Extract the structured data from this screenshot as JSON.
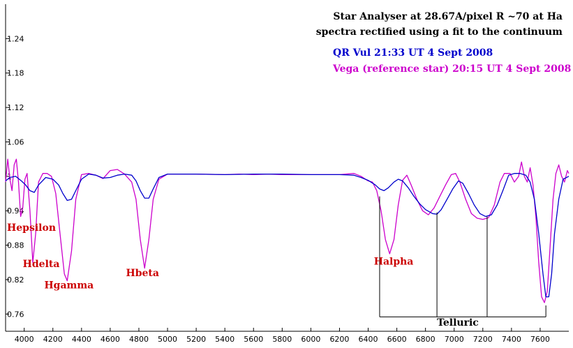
{
  "chart_data": {
    "type": "line",
    "title_lines": [
      "Star Analyser at 28.67A/pixel  R ~70 at Ha",
      "spectra rectified using a fit to the continuum"
    ],
    "xlabel": "",
    "ylabel": "",
    "xlim": [
      3870,
      7800
    ],
    "ylim": [
      0.73,
      1.3
    ],
    "x_ticks": [
      4000,
      4200,
      4400,
      4600,
      4800,
      5000,
      5200,
      5400,
      5600,
      5800,
      6000,
      6200,
      6400,
      6600,
      6800,
      7000,
      7200,
      7400,
      7600
    ],
    "y_ticks": [
      0.76,
      0.82,
      0.88,
      0.94,
      1.0,
      1.06,
      1.12,
      1.18,
      1.24
    ],
    "y_tick_labels": [
      "0.76",
      "0.82",
      "0.88",
      "0.94",
      "1",
      "1.06",
      "1.12",
      "1.18",
      "1.24"
    ],
    "grid": false,
    "legend_position": "top-right",
    "series": [
      {
        "name": "QR Vul  21:33 UT 4 Sept 2008",
        "color": "#0000cc",
        "points": [
          [
            3870,
            0.992
          ],
          [
            3900,
            0.998
          ],
          [
            3940,
            1.0
          ],
          [
            3980,
            0.992
          ],
          [
            4010,
            0.985
          ],
          [
            4040,
            0.975
          ],
          [
            4070,
            0.972
          ],
          [
            4100,
            0.985
          ],
          [
            4150,
            0.998
          ],
          [
            4200,
            0.995
          ],
          [
            4240,
            0.985
          ],
          [
            4270,
            0.97
          ],
          [
            4300,
            0.958
          ],
          [
            4330,
            0.96
          ],
          [
            4360,
            0.975
          ],
          [
            4400,
            0.995
          ],
          [
            4450,
            1.004
          ],
          [
            4500,
            1.002
          ],
          [
            4550,
            0.997
          ],
          [
            4600,
            0.998
          ],
          [
            4650,
            1.002
          ],
          [
            4700,
            1.004
          ],
          [
            4750,
            1.002
          ],
          [
            4780,
            0.992
          ],
          [
            4810,
            0.975
          ],
          [
            4840,
            0.962
          ],
          [
            4870,
            0.962
          ],
          [
            4900,
            0.978
          ],
          [
            4940,
            0.998
          ],
          [
            5000,
            1.004
          ],
          [
            5200,
            1.004
          ],
          [
            5400,
            1.003
          ],
          [
            5600,
            1.004
          ],
          [
            5800,
            1.004
          ],
          [
            6000,
            1.003
          ],
          [
            6200,
            1.003
          ],
          [
            6300,
            1.002
          ],
          [
            6350,
            0.998
          ],
          [
            6400,
            0.993
          ],
          [
            6450,
            0.985
          ],
          [
            6480,
            0.978
          ],
          [
            6510,
            0.975
          ],
          [
            6540,
            0.98
          ],
          [
            6580,
            0.99
          ],
          [
            6610,
            0.995
          ],
          [
            6640,
            0.992
          ],
          [
            6680,
            0.98
          ],
          [
            6720,
            0.965
          ],
          [
            6760,
            0.952
          ],
          [
            6800,
            0.942
          ],
          [
            6850,
            0.935
          ],
          [
            6880,
            0.934
          ],
          [
            6910,
            0.942
          ],
          [
            6950,
            0.96
          ],
          [
            6990,
            0.978
          ],
          [
            7030,
            0.992
          ],
          [
            7060,
            0.988
          ],
          [
            7100,
            0.97
          ],
          [
            7140,
            0.95
          ],
          [
            7180,
            0.935
          ],
          [
            7220,
            0.93
          ],
          [
            7260,
            0.933
          ],
          [
            7300,
            0.95
          ],
          [
            7340,
            0.975
          ],
          [
            7380,
            1.002
          ],
          [
            7420,
            1.005
          ],
          [
            7460,
            1.005
          ],
          [
            7500,
            1.002
          ],
          [
            7530,
            0.99
          ],
          [
            7560,
            0.96
          ],
          [
            7590,
            0.9
          ],
          [
            7620,
            0.83
          ],
          [
            7640,
            0.79
          ],
          [
            7660,
            0.79
          ],
          [
            7680,
            0.83
          ],
          [
            7700,
            0.9
          ],
          [
            7730,
            0.96
          ],
          [
            7760,
            0.995
          ],
          [
            7800,
            1.0
          ]
        ]
      },
      {
        "name": "Vega (reference star)   20:15 UT 4 Sept 2008",
        "color": "#cc00cc",
        "points": [
          [
            3870,
            0.99
          ],
          [
            3885,
            1.03
          ],
          [
            3900,
            0.995
          ],
          [
            3915,
            0.975
          ],
          [
            3930,
            1.02
          ],
          [
            3945,
            1.03
          ],
          [
            3960,
            0.99
          ],
          [
            3975,
            0.93
          ],
          [
            3990,
            0.945
          ],
          [
            4005,
            0.995
          ],
          [
            4020,
            1.005
          ],
          [
            4040,
            0.94
          ],
          [
            4060,
            0.85
          ],
          [
            4080,
            0.9
          ],
          [
            4100,
            0.99
          ],
          [
            4130,
            1.005
          ],
          [
            4160,
            1.005
          ],
          [
            4190,
            1.0
          ],
          [
            4220,
            0.97
          ],
          [
            4250,
            0.9
          ],
          [
            4280,
            0.83
          ],
          [
            4300,
            0.818
          ],
          [
            4330,
            0.87
          ],
          [
            4360,
            0.96
          ],
          [
            4400,
            1.003
          ],
          [
            4450,
            1.005
          ],
          [
            4500,
            1.002
          ],
          [
            4550,
            0.996
          ],
          [
            4600,
            1.01
          ],
          [
            4650,
            1.012
          ],
          [
            4700,
            1.004
          ],
          [
            4750,
            0.99
          ],
          [
            4780,
            0.96
          ],
          [
            4810,
            0.89
          ],
          [
            4840,
            0.84
          ],
          [
            4870,
            0.89
          ],
          [
            4900,
            0.96
          ],
          [
            4940,
            0.995
          ],
          [
            5000,
            1.004
          ],
          [
            5200,
            1.004
          ],
          [
            5400,
            1.003
          ],
          [
            5500,
            1.004
          ],
          [
            5600,
            1.003
          ],
          [
            5700,
            1.004
          ],
          [
            5800,
            1.003
          ],
          [
            6000,
            1.003
          ],
          [
            6200,
            1.003
          ],
          [
            6300,
            1.005
          ],
          [
            6350,
            1.0
          ],
          [
            6400,
            0.992
          ],
          [
            6430,
            0.99
          ],
          [
            6460,
            0.975
          ],
          [
            6490,
            0.94
          ],
          [
            6520,
            0.89
          ],
          [
            6550,
            0.865
          ],
          [
            6580,
            0.89
          ],
          [
            6610,
            0.95
          ],
          [
            6640,
            0.993
          ],
          [
            6670,
            1.002
          ],
          [
            6700,
            0.985
          ],
          [
            6740,
            0.96
          ],
          [
            6780,
            0.94
          ],
          [
            6820,
            0.933
          ],
          [
            6860,
            0.945
          ],
          [
            6900,
            0.965
          ],
          [
            6940,
            0.985
          ],
          [
            6980,
            1.003
          ],
          [
            7010,
            1.005
          ],
          [
            7040,
            0.99
          ],
          [
            7080,
            0.96
          ],
          [
            7120,
            0.935
          ],
          [
            7160,
            0.927
          ],
          [
            7200,
            0.925
          ],
          [
            7240,
            0.928
          ],
          [
            7280,
            0.95
          ],
          [
            7320,
            0.99
          ],
          [
            7350,
            1.005
          ],
          [
            7390,
            1.005
          ],
          [
            7420,
            0.99
          ],
          [
            7450,
            1.0
          ],
          [
            7470,
            1.025
          ],
          [
            7490,
            1.0
          ],
          [
            7510,
            0.99
          ],
          [
            7530,
            1.015
          ],
          [
            7550,
            0.985
          ],
          [
            7570,
            0.93
          ],
          [
            7590,
            0.85
          ],
          [
            7610,
            0.79
          ],
          [
            7630,
            0.78
          ],
          [
            7650,
            0.8
          ],
          [
            7670,
            0.88
          ],
          [
            7690,
            0.96
          ],
          [
            7710,
            1.005
          ],
          [
            7730,
            1.02
          ],
          [
            7750,
            1.0
          ],
          [
            7770,
            0.99
          ],
          [
            7790,
            1.01
          ],
          [
            7800,
            1.005
          ]
        ]
      }
    ],
    "annotations": [
      {
        "label": "Hepsilon",
        "x": 3880,
        "y": 0.905,
        "color": "#cc0000"
      },
      {
        "label": "Hdelta",
        "x": 3990,
        "y": 0.842,
        "color": "#cc0000"
      },
      {
        "label": "Hgamma",
        "x": 4140,
        "y": 0.805,
        "color": "#cc0000"
      },
      {
        "label": "Hbeta",
        "x": 4710,
        "y": 0.826,
        "color": "#cc0000"
      },
      {
        "label": "Halpha",
        "x": 6440,
        "y": 0.846,
        "color": "#cc0000"
      },
      {
        "label": "Telluric",
        "x": 6880,
        "y": 0.74,
        "color": "#000000"
      }
    ],
    "telluric_markers": {
      "bracket_y": 0.755,
      "bracket_from": 6480,
      "bracket_to": 7640,
      "lines": [
        {
          "x": 6480,
          "top": 0.965
        },
        {
          "x": 6880,
          "top": 0.937
        },
        {
          "x": 7230,
          "top": 0.93
        },
        {
          "x": 7640,
          "top": 0.775
        }
      ]
    }
  }
}
